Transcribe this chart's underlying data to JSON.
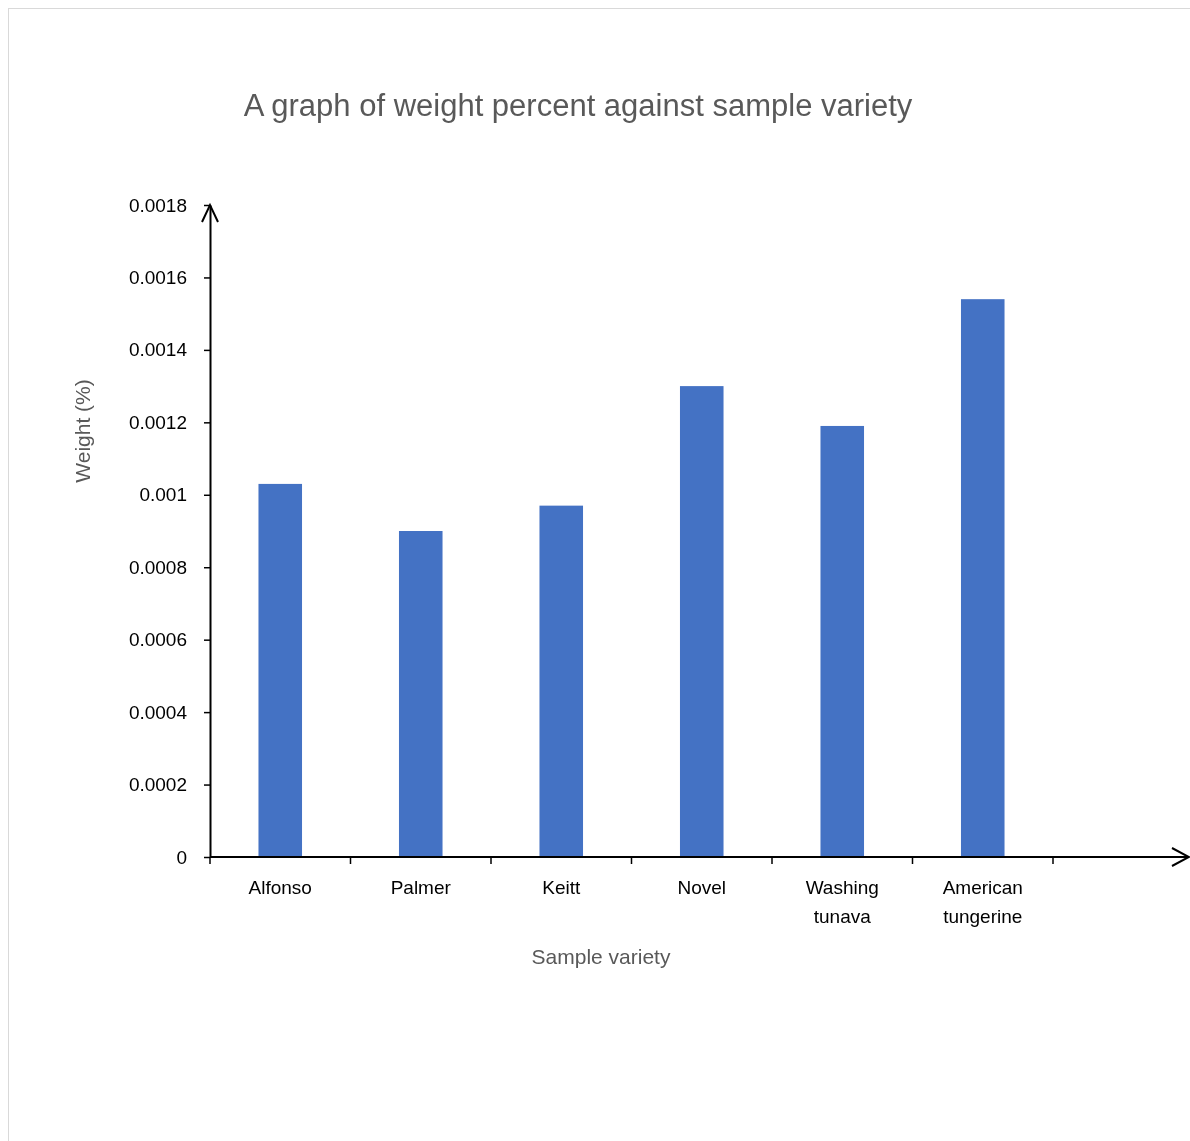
{
  "chart_data": {
    "type": "bar",
    "title": "A graph of weight percent against sample variety",
    "xlabel": "Sample variety",
    "ylabel": "Weight (%)",
    "categories": [
      "Alfonso",
      "Palmer",
      "Keitt",
      "Novel",
      "Washing tunava",
      "American tungerine"
    ],
    "values": [
      0.00103,
      0.0009,
      0.00097,
      0.0013,
      0.00119,
      0.00154
    ],
    "color": "#4472c4",
    "ylim": [
      0,
      0.0018
    ],
    "yticks": [
      0,
      0.0002,
      0.0004,
      0.0006,
      0.0008,
      0.001,
      0.0012,
      0.0014,
      0.0016,
      0.0018
    ],
    "grid": false
  }
}
